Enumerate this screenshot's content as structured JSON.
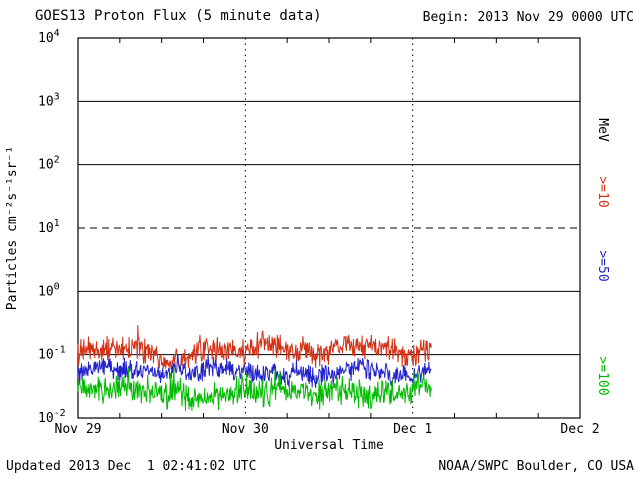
{
  "chart_data": {
    "type": "line",
    "title": "GOES13 Proton Flux (5 minute data)",
    "begin_label": "Begin: 2013 Nov 29 0000 UTC",
    "updated_label": "Updated 2013 Dec  1 02:41:02 UTC",
    "source_label": "NOAA/SWPC Boulder, CO USA",
    "xlabel": "Universal Time",
    "ylabel": "Particles cm⁻²s⁻¹sr⁻¹",
    "right_unit_label": "MeV",
    "x_tick_labels": [
      "Nov 29",
      "Nov 30",
      "Dec 1",
      "Dec 2"
    ],
    "x_range_hours": [
      0,
      72
    ],
    "y_axis": {
      "scale": "log10",
      "exponent_min": -2,
      "exponent_max": 4,
      "solid_gridline_exponents": [
        3,
        2,
        0,
        -1
      ],
      "dashed_gridline_exponents": [
        1
      ]
    },
    "day_gridlines_hours": [
      24,
      48
    ],
    "sample_interval_minutes": 5,
    "data_end_hour": 50.7,
    "series": [
      {
        "name": ">=10",
        "unit": "MeV",
        "color": "#d43217",
        "approx_level": 0.11,
        "log_mean": -0.95,
        "log_sigma": 0.12,
        "range": [
          0.06,
          0.35
        ]
      },
      {
        "name": ">=50",
        "unit": "MeV",
        "color": "#2222cc",
        "approx_level": 0.05,
        "log_mean": -1.28,
        "log_sigma": 0.1,
        "range": [
          0.03,
          0.13
        ]
      },
      {
        "name": ">=100",
        "unit": "MeV",
        "color": "#00bb00",
        "approx_level": 0.026,
        "log_mean": -1.6,
        "log_sigma": 0.13,
        "range": [
          0.013,
          0.065
        ]
      }
    ]
  }
}
